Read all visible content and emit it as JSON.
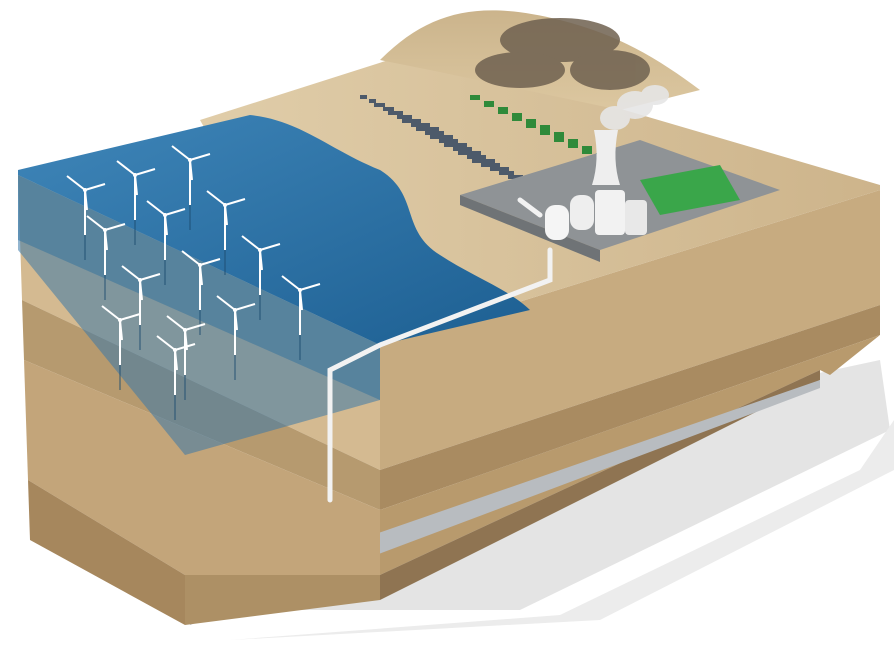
{
  "scene": {
    "subject": "energy-landscape-block",
    "colors": {
      "background": "#ffffff",
      "sea_deep": "#1d5f92",
      "sea_light": "#3f86b9",
      "sand_top": "#d8c29c",
      "soil_upper": "#c9ad82",
      "soil_middle": "#b39669",
      "soil_lower": "#a0835a",
      "plant_pad": "#8f9396",
      "solar_panel": "#4d5a6a",
      "green_panel": "#2f8a3a",
      "pipe": "#f2f2f2",
      "forest": "#6f6150",
      "steam": "#e6e6e6"
    },
    "elements": {
      "wind_turbine_count": 14,
      "solar_array_rows": 9,
      "green_field_rows": 7
    }
  }
}
